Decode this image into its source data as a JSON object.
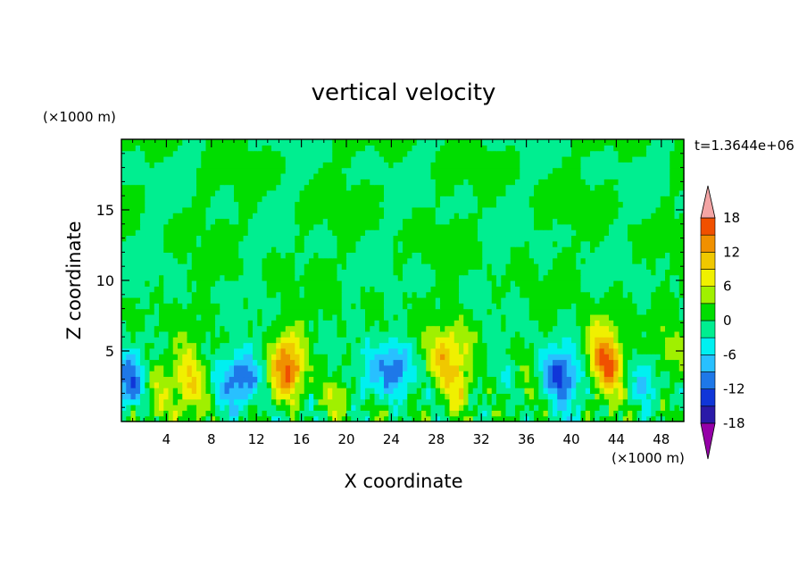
{
  "chart_data": {
    "type": "heatmap",
    "title": "vertical velocity",
    "xlabel": "X coordinate",
    "ylabel": "Z coordinate",
    "x_unit": "(×1000 m)",
    "y_unit": "(×1000 m)",
    "time_label": "t=1.3644e+06",
    "xlim": [
      0,
      50
    ],
    "ylim": [
      0,
      20
    ],
    "x_ticks": [
      4,
      8,
      12,
      16,
      20,
      24,
      28,
      32,
      36,
      40,
      44,
      48
    ],
    "y_ticks": [
      5,
      10,
      15
    ],
    "colorbar": {
      "levels": [
        -21,
        -18,
        -15,
        -12,
        -9,
        -6,
        -3,
        0,
        3,
        6,
        9,
        12,
        15,
        18,
        21
      ],
      "tick_values": [
        18,
        12,
        6,
        0,
        -6,
        -12,
        -18
      ],
      "tick_labels": [
        "18",
        "12",
        "6",
        "0",
        "-6",
        "-12",
        "-18"
      ],
      "colors_low_to_high": [
        "#5a1fa0",
        "#2a1aa8",
        "#1036d8",
        "#1e78e8",
        "#28c0ff",
        "#00f0f0",
        "#00ee90",
        "#00dd00",
        "#a0f000",
        "#f0f000",
        "#f0c800",
        "#f09000",
        "#f05000",
        "#e41818"
      ],
      "under_color": "#9500a8",
      "over_color": "#f4a5a5"
    },
    "grid": false,
    "features": [
      {
        "name": "downdraft",
        "x": 0.8,
        "z": 2.8,
        "amp": -11
      },
      {
        "name": "updraft",
        "x": 3.3,
        "z": 2.4,
        "amp": 4
      },
      {
        "name": "updraft",
        "x": 6.0,
        "z": 3.5,
        "amp": 7
      },
      {
        "name": "updraft",
        "x": 6.2,
        "z": 1.8,
        "amp": 5
      },
      {
        "name": "downdraft",
        "x": 9.5,
        "z": 3.0,
        "amp": -5
      },
      {
        "name": "downdraft",
        "x": 11.0,
        "z": 3.2,
        "amp": -9
      },
      {
        "name": "updraft",
        "x": 14.8,
        "z": 3.5,
        "amp": 13
      },
      {
        "name": "updraft",
        "x": 14.8,
        "z": 5.5,
        "amp": 5
      },
      {
        "name": "updraft",
        "x": 19.5,
        "z": 1.5,
        "amp": 5
      },
      {
        "name": "downdraft",
        "x": 22.0,
        "z": 3.0,
        "amp": -5
      },
      {
        "name": "downdraft",
        "x": 24.5,
        "z": 3.8,
        "amp": -12
      },
      {
        "name": "updraft",
        "x": 28.5,
        "z": 4.5,
        "amp": 9
      },
      {
        "name": "updraft",
        "x": 30.0,
        "z": 2.5,
        "amp": 8
      },
      {
        "name": "updraft",
        "x": 30.0,
        "z": 6.0,
        "amp": 4
      },
      {
        "name": "downdraft",
        "x": 34.5,
        "z": 3.0,
        "amp": -4
      },
      {
        "name": "updraft",
        "x": 35.5,
        "z": 2.0,
        "amp": 3
      },
      {
        "name": "downdraft",
        "x": 38.8,
        "z": 3.5,
        "amp": -11
      },
      {
        "name": "downdraft",
        "x": 40.0,
        "z": 2.5,
        "amp": -5
      },
      {
        "name": "updraft",
        "x": 43.2,
        "z": 4.0,
        "amp": 16
      },
      {
        "name": "updraft",
        "x": 42.5,
        "z": 6.0,
        "amp": 6
      },
      {
        "name": "downdraft",
        "x": 46.5,
        "z": 3.0,
        "amp": -6
      },
      {
        "name": "updraft",
        "x": 49.0,
        "z": 4.5,
        "amp": 5
      }
    ]
  }
}
